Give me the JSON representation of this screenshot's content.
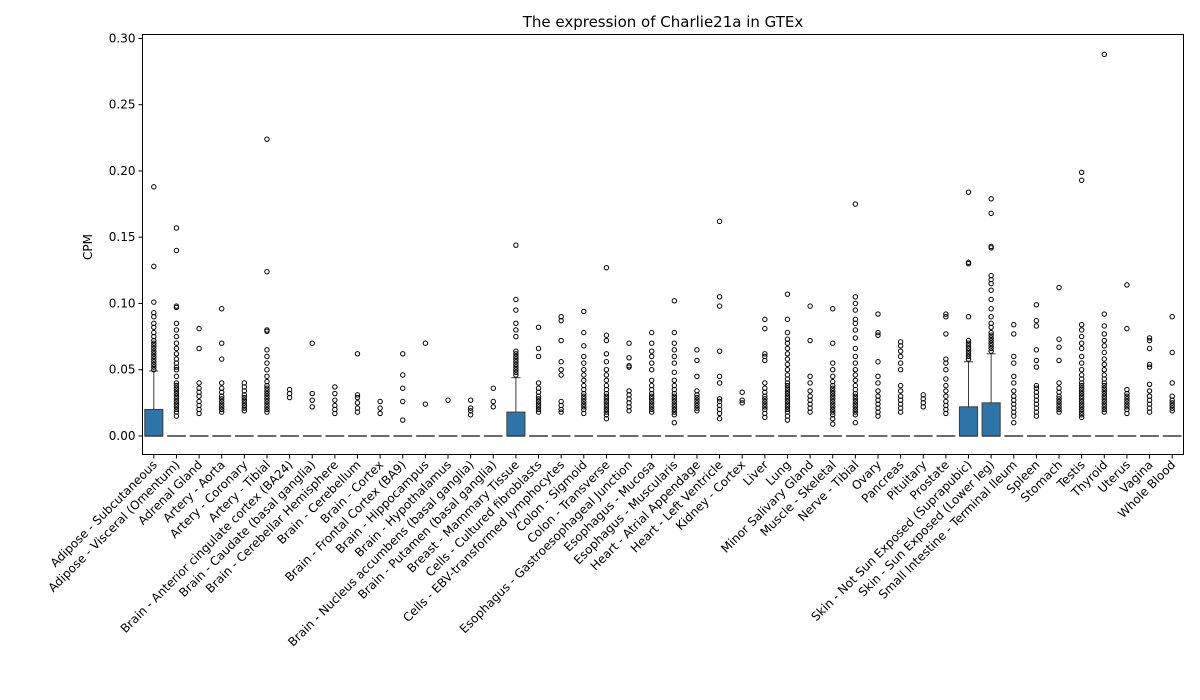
{
  "chart_data": {
    "type": "box",
    "title": "The expression of Charlie21a in GTEx",
    "xlabel": "",
    "ylabel": "CPM",
    "ylim": [
      -0.014,
      0.303
    ],
    "yticks": [
      0.0,
      0.05,
      0.1,
      0.15,
      0.2,
      0.25,
      0.3
    ],
    "ytick_labels": [
      "0.00",
      "0.05",
      "0.10",
      "0.15",
      "0.20",
      "0.25",
      "0.30"
    ],
    "box_color": "#2f74a8",
    "grid": false,
    "categories": [
      "Adipose - Subcutaneous",
      "Adipose - Visceral (Omentum)",
      "Adrenal Gland",
      "Artery - Aorta",
      "Artery - Coronary",
      "Artery - Tibial",
      "Brain - Anterior cingulate cortex (BA24)",
      "Brain - Caudate (basal ganglia)",
      "Brain - Cerebellar Hemisphere",
      "Brain - Cerebellum",
      "Brain - Cortex",
      "Brain - Frontal Cortex (BA9)",
      "Brain - Hippocampus",
      "Brain - Hypothalamus",
      "Brain - Nucleus accumbens (basal ganglia)",
      "Brain - Putamen (basal ganglia)",
      "Breast - Mammary Tissue",
      "Cells - Cultured fibroblasts",
      "Cells - EBV-transformed lymphocytes",
      "Colon - Sigmoid",
      "Colon - Transverse",
      "Esophagus - Gastroesophageal Junction",
      "Esophagus - Mucosa",
      "Esophagus - Muscularis",
      "Heart - Atrial Appendage",
      "Heart - Left Ventricle",
      "Kidney - Cortex",
      "Liver",
      "Lung",
      "Minor Salivary Gland",
      "Muscle - Skeletal",
      "Nerve - Tibial",
      "Ovary",
      "Pancreas",
      "Pituitary",
      "Prostate",
      "Skin - Not Sun Exposed (Suprapubic)",
      "Skin - Sun Exposed (Lower leg)",
      "Small Intestine - Terminal Ileum",
      "Spleen",
      "Stomach",
      "Testis",
      "Thyroid",
      "Uterus",
      "Vagina",
      "Whole Blood"
    ],
    "boxes": [
      {
        "q1": 0.0,
        "median": 0.0,
        "q3": 0.02,
        "whisker_low": 0.0,
        "whisker_high": 0.049,
        "outliers": [
          0.05,
          0.052,
          0.054,
          0.056,
          0.058,
          0.06,
          0.062,
          0.064,
          0.066,
          0.068,
          0.07,
          0.072,
          0.075,
          0.078,
          0.082,
          0.085,
          0.09,
          0.093,
          0.101,
          0.128,
          0.188
        ]
      },
      {
        "q1": 0.0,
        "median": 0.0,
        "q3": 0.0,
        "whisker_low": 0.0,
        "whisker_high": 0.0,
        "outliers": [
          0.015,
          0.018,
          0.02,
          0.022,
          0.024,
          0.026,
          0.028,
          0.03,
          0.032,
          0.034,
          0.036,
          0.038,
          0.04,
          0.045,
          0.05,
          0.052,
          0.055,
          0.058,
          0.062,
          0.066,
          0.07,
          0.075,
          0.08,
          0.085,
          0.097,
          0.098,
          0.14,
          0.157
        ]
      },
      {
        "q1": 0.0,
        "median": 0.0,
        "q3": 0.0,
        "whisker_low": 0.0,
        "whisker_high": 0.0,
        "outliers": [
          0.017,
          0.02,
          0.023,
          0.026,
          0.03,
          0.033,
          0.036,
          0.04,
          0.066,
          0.081
        ]
      },
      {
        "q1": 0.0,
        "median": 0.0,
        "q3": 0.0,
        "whisker_low": 0.0,
        "whisker_high": 0.0,
        "outliers": [
          0.018,
          0.02,
          0.022,
          0.024,
          0.026,
          0.028,
          0.03,
          0.033,
          0.036,
          0.04,
          0.058,
          0.07,
          0.096
        ]
      },
      {
        "q1": 0.0,
        "median": 0.0,
        "q3": 0.0,
        "whisker_low": 0.0,
        "whisker_high": 0.0,
        "outliers": [
          0.019,
          0.021,
          0.023,
          0.025,
          0.027,
          0.029,
          0.031,
          0.034,
          0.037,
          0.04
        ]
      },
      {
        "q1": 0.0,
        "median": 0.0,
        "q3": 0.0,
        "whisker_low": 0.0,
        "whisker_high": 0.0,
        "outliers": [
          0.018,
          0.02,
          0.022,
          0.024,
          0.026,
          0.028,
          0.03,
          0.032,
          0.034,
          0.036,
          0.038,
          0.041,
          0.045,
          0.05,
          0.055,
          0.06,
          0.065,
          0.079,
          0.08,
          0.124,
          0.224
        ]
      },
      {
        "q1": 0.0,
        "median": 0.0,
        "q3": 0.0,
        "whisker_low": 0.0,
        "whisker_high": 0.0,
        "outliers": [
          0.029,
          0.032,
          0.035
        ]
      },
      {
        "q1": 0.0,
        "median": 0.0,
        "q3": 0.0,
        "whisker_low": 0.0,
        "whisker_high": 0.0,
        "outliers": [
          0.022,
          0.027,
          0.032,
          0.07
        ]
      },
      {
        "q1": 0.0,
        "median": 0.0,
        "q3": 0.0,
        "whisker_low": 0.0,
        "whisker_high": 0.0,
        "outliers": [
          0.017,
          0.02,
          0.023,
          0.027,
          0.032,
          0.037
        ]
      },
      {
        "q1": 0.0,
        "median": 0.0,
        "q3": 0.0,
        "whisker_low": 0.0,
        "whisker_high": 0.0,
        "outliers": [
          0.018,
          0.021,
          0.025,
          0.029,
          0.031,
          0.062
        ]
      },
      {
        "q1": 0.0,
        "median": 0.0,
        "q3": 0.0,
        "whisker_low": 0.0,
        "whisker_high": 0.0,
        "outliers": [
          0.017,
          0.021,
          0.026
        ]
      },
      {
        "q1": 0.0,
        "median": 0.0,
        "q3": 0.0,
        "whisker_low": 0.0,
        "whisker_high": 0.0,
        "outliers": [
          0.012,
          0.026,
          0.036,
          0.046,
          0.062
        ]
      },
      {
        "q1": 0.0,
        "median": 0.0,
        "q3": 0.0,
        "whisker_low": 0.0,
        "whisker_high": 0.0,
        "outliers": [
          0.024,
          0.07
        ]
      },
      {
        "q1": 0.0,
        "median": 0.0,
        "q3": 0.0,
        "whisker_low": 0.0,
        "whisker_high": 0.0,
        "outliers": [
          0.027
        ]
      },
      {
        "q1": 0.0,
        "median": 0.0,
        "q3": 0.0,
        "whisker_low": 0.0,
        "whisker_high": 0.0,
        "outliers": [
          0.016,
          0.019,
          0.021,
          0.027
        ]
      },
      {
        "q1": 0.0,
        "median": 0.0,
        "q3": 0.0,
        "whisker_low": 0.0,
        "whisker_high": 0.0,
        "outliers": [
          0.022,
          0.026,
          0.036
        ]
      },
      {
        "q1": 0.0,
        "median": 0.0,
        "q3": 0.018,
        "whisker_low": 0.0,
        "whisker_high": 0.044,
        "outliers": [
          0.046,
          0.048,
          0.05,
          0.052,
          0.054,
          0.056,
          0.058,
          0.06,
          0.062,
          0.064,
          0.075,
          0.08,
          0.085,
          0.095,
          0.103,
          0.144
        ]
      },
      {
        "q1": 0.0,
        "median": 0.0,
        "q3": 0.0,
        "whisker_low": 0.0,
        "whisker_high": 0.0,
        "outliers": [
          0.018,
          0.02,
          0.022,
          0.024,
          0.026,
          0.028,
          0.03,
          0.033,
          0.036,
          0.04,
          0.06,
          0.066,
          0.082
        ]
      },
      {
        "q1": 0.0,
        "median": 0.0,
        "q3": 0.0,
        "whisker_low": 0.0,
        "whisker_high": 0.0,
        "outliers": [
          0.018,
          0.02,
          0.023,
          0.026,
          0.046,
          0.05,
          0.056,
          0.072,
          0.087,
          0.09
        ]
      },
      {
        "q1": 0.0,
        "median": 0.0,
        "q3": 0.0,
        "whisker_low": 0.0,
        "whisker_high": 0.0,
        "outliers": [
          0.017,
          0.02,
          0.022,
          0.024,
          0.026,
          0.028,
          0.03,
          0.032,
          0.035,
          0.038,
          0.042,
          0.046,
          0.05,
          0.055,
          0.06,
          0.068,
          0.078,
          0.094
        ]
      },
      {
        "q1": 0.0,
        "median": 0.0,
        "q3": 0.0,
        "whisker_low": 0.0,
        "whisker_high": 0.0,
        "outliers": [
          0.013,
          0.016,
          0.018,
          0.02,
          0.022,
          0.024,
          0.026,
          0.028,
          0.03,
          0.032,
          0.035,
          0.038,
          0.042,
          0.046,
          0.05,
          0.056,
          0.062,
          0.072,
          0.076,
          0.127
        ]
      },
      {
        "q1": 0.0,
        "median": 0.0,
        "q3": 0.0,
        "whisker_low": 0.0,
        "whisker_high": 0.0,
        "outliers": [
          0.019,
          0.022,
          0.025,
          0.028,
          0.031,
          0.034,
          0.052,
          0.053,
          0.059,
          0.07
        ]
      },
      {
        "q1": 0.0,
        "median": 0.0,
        "q3": 0.0,
        "whisker_low": 0.0,
        "whisker_high": 0.0,
        "outliers": [
          0.018,
          0.02,
          0.022,
          0.024,
          0.026,
          0.028,
          0.03,
          0.032,
          0.035,
          0.038,
          0.042,
          0.05,
          0.055,
          0.06,
          0.064,
          0.07,
          0.078
        ]
      },
      {
        "q1": 0.0,
        "median": 0.0,
        "q3": 0.0,
        "whisker_low": 0.0,
        "whisker_high": 0.0,
        "outliers": [
          0.01,
          0.016,
          0.018,
          0.02,
          0.022,
          0.024,
          0.026,
          0.028,
          0.03,
          0.032,
          0.035,
          0.038,
          0.042,
          0.048,
          0.055,
          0.06,
          0.065,
          0.07,
          0.078,
          0.102
        ]
      },
      {
        "q1": 0.0,
        "median": 0.0,
        "q3": 0.0,
        "whisker_low": 0.0,
        "whisker_high": 0.0,
        "outliers": [
          0.019,
          0.021,
          0.023,
          0.025,
          0.027,
          0.029,
          0.031,
          0.034,
          0.045,
          0.057,
          0.065
        ]
      },
      {
        "q1": 0.0,
        "median": 0.0,
        "q3": 0.0,
        "whisker_low": 0.0,
        "whisker_high": 0.0,
        "outliers": [
          0.013,
          0.017,
          0.02,
          0.023,
          0.026,
          0.028,
          0.04,
          0.045,
          0.064,
          0.098,
          0.105,
          0.162
        ]
      },
      {
        "q1": 0.0,
        "median": 0.0,
        "q3": 0.0,
        "whisker_low": 0.0,
        "whisker_high": 0.0,
        "outliers": [
          0.025,
          0.027,
          0.033
        ]
      },
      {
        "q1": 0.0,
        "median": 0.0,
        "q3": 0.0,
        "whisker_low": 0.0,
        "whisker_high": 0.0,
        "outliers": [
          0.014,
          0.017,
          0.02,
          0.022,
          0.024,
          0.026,
          0.028,
          0.03,
          0.033,
          0.036,
          0.04,
          0.057,
          0.06,
          0.062,
          0.081,
          0.088
        ]
      },
      {
        "q1": 0.0,
        "median": 0.0,
        "q3": 0.0,
        "whisker_low": 0.0,
        "whisker_high": 0.0,
        "outliers": [
          0.012,
          0.015,
          0.018,
          0.02,
          0.022,
          0.024,
          0.026,
          0.028,
          0.03,
          0.032,
          0.034,
          0.036,
          0.038,
          0.04,
          0.043,
          0.046,
          0.05,
          0.054,
          0.058,
          0.062,
          0.066,
          0.07,
          0.073,
          0.078,
          0.088,
          0.107
        ]
      },
      {
        "q1": 0.0,
        "median": 0.0,
        "q3": 0.0,
        "whisker_low": 0.0,
        "whisker_high": 0.0,
        "outliers": [
          0.018,
          0.021,
          0.024,
          0.027,
          0.03,
          0.034,
          0.04,
          0.045,
          0.072,
          0.098
        ]
      },
      {
        "q1": 0.0,
        "median": 0.0,
        "q3": 0.0,
        "whisker_low": 0.0,
        "whisker_high": 0.0,
        "outliers": [
          0.009,
          0.013,
          0.016,
          0.018,
          0.02,
          0.022,
          0.024,
          0.026,
          0.028,
          0.03,
          0.032,
          0.034,
          0.036,
          0.038,
          0.041,
          0.045,
          0.05,
          0.055,
          0.07,
          0.096
        ]
      },
      {
        "q1": 0.0,
        "median": 0.0,
        "q3": 0.0,
        "whisker_low": 0.0,
        "whisker_high": 0.0,
        "outliers": [
          0.01,
          0.016,
          0.018,
          0.02,
          0.022,
          0.024,
          0.026,
          0.028,
          0.03,
          0.032,
          0.035,
          0.038,
          0.042,
          0.046,
          0.05,
          0.055,
          0.06,
          0.066,
          0.074,
          0.08,
          0.085,
          0.088,
          0.095,
          0.1,
          0.105,
          0.175
        ]
      },
      {
        "q1": 0.0,
        "median": 0.0,
        "q3": 0.0,
        "whisker_low": 0.0,
        "whisker_high": 0.0,
        "outliers": [
          0.015,
          0.018,
          0.021,
          0.024,
          0.027,
          0.03,
          0.034,
          0.04,
          0.045,
          0.056,
          0.076,
          0.078,
          0.092
        ]
      },
      {
        "q1": 0.0,
        "median": 0.0,
        "q3": 0.0,
        "whisker_low": 0.0,
        "whisker_high": 0.0,
        "outliers": [
          0.018,
          0.021,
          0.024,
          0.027,
          0.03,
          0.034,
          0.038,
          0.05,
          0.055,
          0.06,
          0.064,
          0.068,
          0.071
        ]
      },
      {
        "q1": 0.0,
        "median": 0.0,
        "q3": 0.0,
        "whisker_low": 0.0,
        "whisker_high": 0.0,
        "outliers": [
          0.022,
          0.025,
          0.028,
          0.031
        ]
      },
      {
        "q1": 0.0,
        "median": 0.0,
        "q3": 0.0,
        "whisker_low": 0.0,
        "whisker_high": 0.0,
        "outliers": [
          0.017,
          0.02,
          0.023,
          0.026,
          0.03,
          0.034,
          0.038,
          0.043,
          0.05,
          0.055,
          0.058,
          0.077,
          0.09,
          0.092
        ]
      },
      {
        "q1": 0.0,
        "median": 0.0,
        "q3": 0.022,
        "whisker_low": 0.0,
        "whisker_high": 0.056,
        "outliers": [
          0.058,
          0.06,
          0.062,
          0.064,
          0.066,
          0.068,
          0.07,
          0.072,
          0.09,
          0.13,
          0.131,
          0.184
        ]
      },
      {
        "q1": 0.0,
        "median": 0.0,
        "q3": 0.025,
        "whisker_low": 0.0,
        "whisker_high": 0.062,
        "outliers": [
          0.064,
          0.066,
          0.068,
          0.07,
          0.072,
          0.074,
          0.076,
          0.078,
          0.082,
          0.085,
          0.09,
          0.096,
          0.103,
          0.11,
          0.115,
          0.118,
          0.121,
          0.142,
          0.143,
          0.168,
          0.179
        ]
      },
      {
        "q1": 0.0,
        "median": 0.0,
        "q3": 0.0,
        "whisker_low": 0.0,
        "whisker_high": 0.0,
        "outliers": [
          0.01,
          0.015,
          0.018,
          0.021,
          0.024,
          0.027,
          0.03,
          0.034,
          0.04,
          0.045,
          0.055,
          0.06,
          0.077,
          0.084
        ]
      },
      {
        "q1": 0.0,
        "median": 0.0,
        "q3": 0.0,
        "whisker_low": 0.0,
        "whisker_high": 0.0,
        "outliers": [
          0.015,
          0.018,
          0.021,
          0.024,
          0.027,
          0.03,
          0.033,
          0.036,
          0.038,
          0.052,
          0.057,
          0.065,
          0.083,
          0.087,
          0.099
        ]
      },
      {
        "q1": 0.0,
        "median": 0.0,
        "q3": 0.0,
        "whisker_low": 0.0,
        "whisker_high": 0.0,
        "outliers": [
          0.018,
          0.02,
          0.022,
          0.024,
          0.026,
          0.028,
          0.03,
          0.033,
          0.036,
          0.04,
          0.057,
          0.067,
          0.073,
          0.112
        ]
      },
      {
        "q1": 0.0,
        "median": 0.0,
        "q3": 0.0,
        "whisker_low": 0.0,
        "whisker_high": 0.0,
        "outliers": [
          0.014,
          0.016,
          0.018,
          0.02,
          0.022,
          0.024,
          0.026,
          0.028,
          0.03,
          0.032,
          0.034,
          0.036,
          0.038,
          0.04,
          0.043,
          0.046,
          0.05,
          0.055,
          0.06,
          0.066,
          0.07,
          0.075,
          0.08,
          0.084,
          0.193,
          0.199
        ]
      },
      {
        "q1": 0.0,
        "median": 0.0,
        "q3": 0.0,
        "whisker_low": 0.0,
        "whisker_high": 0.0,
        "outliers": [
          0.018,
          0.02,
          0.022,
          0.024,
          0.026,
          0.028,
          0.03,
          0.032,
          0.034,
          0.036,
          0.038,
          0.04,
          0.043,
          0.046,
          0.05,
          0.054,
          0.058,
          0.063,
          0.068,
          0.072,
          0.077,
          0.083,
          0.092,
          0.288
        ]
      },
      {
        "q1": 0.0,
        "median": 0.0,
        "q3": 0.0,
        "whisker_low": 0.0,
        "whisker_high": 0.0,
        "outliers": [
          0.017,
          0.02,
          0.022,
          0.024,
          0.026,
          0.028,
          0.03,
          0.032,
          0.035,
          0.081,
          0.114
        ]
      },
      {
        "q1": 0.0,
        "median": 0.0,
        "q3": 0.0,
        "whisker_low": 0.0,
        "whisker_high": 0.0,
        "outliers": [
          0.018,
          0.021,
          0.024,
          0.027,
          0.03,
          0.034,
          0.039,
          0.052,
          0.054,
          0.066,
          0.072,
          0.074
        ]
      },
      {
        "q1": 0.0,
        "median": 0.0,
        "q3": 0.0,
        "whisker_low": 0.0,
        "whisker_high": 0.0,
        "outliers": [
          0.019,
          0.021,
          0.023,
          0.025,
          0.027,
          0.03,
          0.04,
          0.063,
          0.09
        ]
      }
    ]
  }
}
